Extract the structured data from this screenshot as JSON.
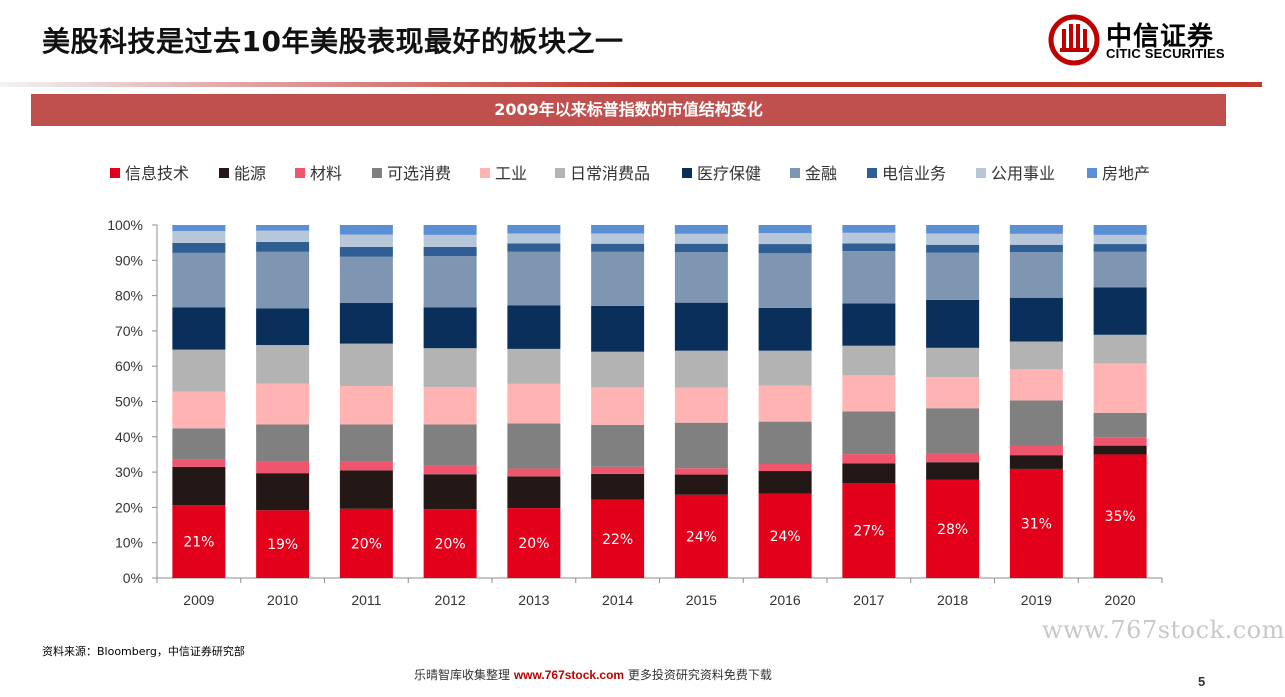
{
  "header": {
    "title": "美股科技是过去10年美股表现最好的板块之一",
    "logo_cn": "中信证券",
    "logo_en": "CITIC SECURITIES"
  },
  "banner": {
    "text": "2009年以来标普指数的市值结构变化"
  },
  "colors": {
    "accent_red": "#c0504d",
    "rule_red": "#c0392b"
  },
  "chart_data": {
    "type": "bar",
    "stacked": true,
    "title": "2009年以来标普指数的市值结构变化",
    "categories": [
      "2009",
      "2010",
      "2011",
      "2012",
      "2013",
      "2014",
      "2015",
      "2016",
      "2017",
      "2018",
      "2019",
      "2020"
    ],
    "ylim": [
      0,
      100
    ],
    "yticks": [
      "0%",
      "10%",
      "20%",
      "30%",
      "40%",
      "50%",
      "60%",
      "70%",
      "80%",
      "90%",
      "100%"
    ],
    "grid": false,
    "legend_position": "top",
    "series": [
      {
        "name": "信息技术",
        "color": "#e2001a",
        "values": [
          20.6,
          19.2,
          19.6,
          19.5,
          19.8,
          22.2,
          23.6,
          23.9,
          26.9,
          27.9,
          30.9,
          35.0
        ],
        "labels": [
          "21%",
          "19%",
          "20%",
          "20%",
          "20%",
          "22%",
          "24%",
          "24%",
          "27%",
          "28%",
          "31%",
          "35%"
        ]
      },
      {
        "name": "能源",
        "color": "#231815",
        "values": [
          10.9,
          10.5,
          10.9,
          9.9,
          9.0,
          7.3,
          5.7,
          6.4,
          5.6,
          4.9,
          3.9,
          2.5
        ]
      },
      {
        "name": "材料",
        "color": "#f0556e",
        "values": [
          2.1,
          3.2,
          2.4,
          2.6,
          2.2,
          2.0,
          1.8,
          2.0,
          2.6,
          2.6,
          2.6,
          2.4
        ]
      },
      {
        "name": "可选消费",
        "color": "#808080",
        "values": [
          8.8,
          10.6,
          10.6,
          11.5,
          12.8,
          11.9,
          12.9,
          12.0,
          12.1,
          12.7,
          12.9,
          6.9
        ]
      },
      {
        "name": "工业",
        "color": "#ffb3b3",
        "values": [
          10.4,
          11.6,
          10.9,
          10.6,
          11.2,
          10.6,
          9.9,
          10.2,
          10.2,
          8.8,
          8.8,
          14.0
        ]
      },
      {
        "name": "日常消费品",
        "color": "#b3b3b3",
        "values": [
          11.9,
          10.9,
          12.0,
          11.0,
          9.9,
          10.1,
          10.5,
          9.9,
          8.4,
          8.3,
          7.9,
          8.1
        ]
      },
      {
        "name": "医疗保健",
        "color": "#0b2f5b",
        "values": [
          12.0,
          10.4,
          11.5,
          11.6,
          12.3,
          13.0,
          13.6,
          12.1,
          12.0,
          13.6,
          12.4,
          13.4
        ]
      },
      {
        "name": "金融",
        "color": "#7f96b2",
        "values": [
          15.4,
          16.0,
          13.1,
          14.5,
          15.2,
          15.3,
          14.3,
          15.5,
          14.8,
          13.4,
          12.9,
          10.1
        ]
      },
      {
        "name": "电信业务",
        "color": "#2e5e94",
        "values": [
          2.8,
          2.8,
          2.8,
          2.6,
          2.4,
          2.3,
          2.4,
          2.6,
          2.2,
          2.2,
          2.1,
          2.2
        ]
      },
      {
        "name": "公用事业",
        "color": "#b8c6d9",
        "values": [
          3.4,
          3.2,
          3.5,
          3.4,
          2.8,
          2.9,
          2.8,
          3.1,
          3.0,
          3.2,
          3.1,
          2.6
        ]
      },
      {
        "name": "房地产",
        "color": "#5b8fd3",
        "values": [
          1.7,
          1.6,
          2.7,
          2.8,
          2.4,
          2.4,
          2.5,
          2.3,
          2.2,
          2.4,
          2.5,
          2.8
        ]
      }
    ]
  },
  "source": {
    "text": "资料来源：Bloomberg，中信证券研究部"
  },
  "footer": {
    "prefix": "乐晴智库收集整理 ",
    "site": "www.767stock.com",
    "suffix": " 更多投资研究资料免费下载",
    "page": "5"
  },
  "watermark": {
    "text": "www.767stock.com"
  }
}
